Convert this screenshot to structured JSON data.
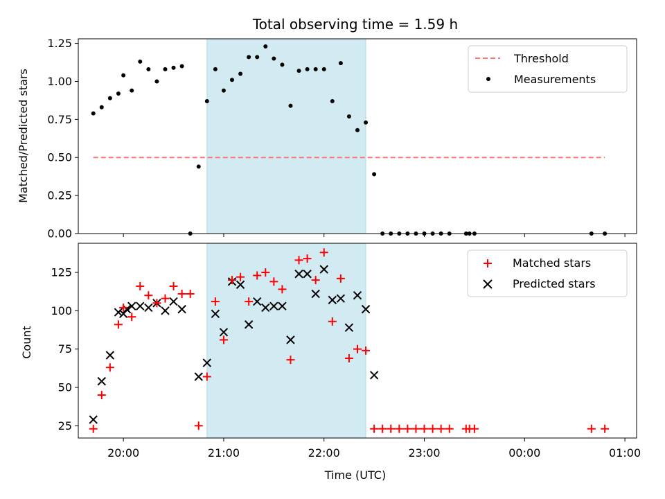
{
  "chart_data": [
    {
      "type": "scatter",
      "title": "Total observing time = 1.59 h",
      "xlabel": "",
      "ylabel": "Matched/Predicted stars",
      "xlim": [
        "19:33",
        "01:07"
      ],
      "ylim": [
        0,
        1.28
      ],
      "yticks": [
        "0.00",
        "0.25",
        "0.50",
        "0.75",
        "1.00",
        "1.25"
      ],
      "yticks_values": [
        0,
        0.25,
        0.5,
        0.75,
        1.0,
        1.25
      ],
      "shaded_region": {
        "start": "20:50",
        "end": "22:25",
        "color": "#add8e6"
      },
      "threshold": {
        "name": "Threshold",
        "value": 0.5,
        "start": "19:42",
        "end": "00:48",
        "color": "#ff7373"
      },
      "series": [
        {
          "name": "Measurements",
          "color": "#000000",
          "x": [
            "19:42",
            "19:47",
            "19:52",
            "19:57",
            "20:00",
            "20:05",
            "20:10",
            "20:15",
            "20:20",
            "20:25",
            "20:30",
            "20:35",
            "20:40",
            "20:45",
            "20:50",
            "20:55",
            "21:00",
            "21:05",
            "21:10",
            "21:15",
            "21:20",
            "21:25",
            "21:30",
            "21:35",
            "21:40",
            "21:45",
            "21:50",
            "21:55",
            "22:00",
            "22:05",
            "22:10",
            "22:15",
            "22:20",
            "22:25",
            "22:30",
            "22:35",
            "22:40",
            "22:45",
            "22:50",
            "22:55",
            "23:00",
            "23:05",
            "23:10",
            "23:15",
            "23:25",
            "23:27",
            "23:30",
            "00:40",
            "00:48"
          ],
          "y": [
            0.79,
            0.83,
            0.89,
            0.92,
            1.04,
            0.94,
            1.13,
            1.08,
            1.0,
            1.08,
            1.09,
            1.1,
            0.0,
            0.44,
            0.87,
            1.08,
            0.94,
            1.01,
            1.05,
            1.16,
            1.16,
            1.23,
            1.15,
            1.11,
            0.84,
            1.07,
            1.08,
            1.08,
            1.08,
            0.87,
            1.12,
            0.77,
            0.68,
            0.73,
            0.39,
            0.0,
            0.0,
            0.0,
            0.0,
            0.0,
            0.0,
            0.0,
            0.0,
            0.0,
            0.0,
            0.0,
            0.0,
            0.0,
            0.0
          ]
        }
      ],
      "legend": {
        "position": "top-right",
        "entries": [
          "Threshold",
          "Measurements"
        ]
      }
    },
    {
      "type": "scatter",
      "title": "",
      "xlabel": "Time (UTC)",
      "ylabel": "Count",
      "xlim": [
        "19:33",
        "01:07"
      ],
      "xticks": [
        "20:00",
        "21:00",
        "22:00",
        "23:00",
        "00:00",
        "01:00"
      ],
      "ylim": [
        17,
        144
      ],
      "yticks": [
        "25",
        "50",
        "75",
        "100",
        "125"
      ],
      "yticks_values": [
        25,
        50,
        75,
        100,
        125
      ],
      "shaded_region": {
        "start": "20:50",
        "end": "22:25",
        "color": "#add8e6"
      },
      "series": [
        {
          "name": "Matched stars",
          "marker": "plus",
          "color": "#ff0000",
          "x": [
            "19:42",
            "19:47",
            "19:52",
            "19:57",
            "20:00",
            "20:05",
            "20:10",
            "20:15",
            "20:20",
            "20:25",
            "20:30",
            "20:35",
            "20:40",
            "20:45",
            "20:50",
            "20:55",
            "21:00",
            "21:05",
            "21:10",
            "21:15",
            "21:20",
            "21:25",
            "21:30",
            "21:35",
            "21:40",
            "21:45",
            "21:50",
            "21:55",
            "22:00",
            "22:05",
            "22:10",
            "22:15",
            "22:20",
            "22:25",
            "22:30",
            "22:35",
            "22:40",
            "22:45",
            "22:50",
            "22:55",
            "23:00",
            "23:05",
            "23:10",
            "23:15",
            "23:25",
            "23:27",
            "23:30",
            "00:40",
            "00:48"
          ],
          "y": [
            23,
            45,
            63,
            91,
            102,
            96,
            116,
            110,
            105,
            108,
            116,
            111,
            111,
            25,
            57,
            106,
            81,
            120,
            122,
            106,
            123,
            125,
            119,
            114,
            68,
            133,
            134,
            120,
            138,
            93,
            121,
            69,
            75,
            74,
            23,
            23,
            23,
            23,
            23,
            23,
            23,
            23,
            23,
            23,
            23,
            23,
            23,
            23,
            23
          ]
        },
        {
          "name": "Predicted stars",
          "marker": "x",
          "color": "#000000",
          "x": [
            "19:42",
            "19:47",
            "19:52",
            "19:57",
            "20:00",
            "20:02",
            "20:05",
            "20:10",
            "20:15",
            "20:20",
            "20:25",
            "20:30",
            "20:35",
            "20:45",
            "20:50",
            "20:55",
            "21:00",
            "21:05",
            "21:10",
            "21:15",
            "21:20",
            "21:25",
            "21:30",
            "21:35",
            "21:40",
            "21:45",
            "21:50",
            "21:55",
            "22:00",
            "22:05",
            "22:10",
            "22:15",
            "22:20",
            "22:25",
            "22:30"
          ],
          "y": [
            29,
            54,
            71,
            99,
            98,
            101,
            103,
            103,
            102,
            105,
            100,
            106,
            101,
            57,
            66,
            98,
            86,
            119,
            117,
            91,
            106,
            102,
            103,
            103,
            81,
            124,
            124,
            111,
            127,
            107,
            108,
            89,
            110,
            101,
            58
          ]
        }
      ],
      "legend": {
        "position": "top-right",
        "entries": [
          "Matched stars",
          "Predicted stars"
        ]
      }
    }
  ]
}
